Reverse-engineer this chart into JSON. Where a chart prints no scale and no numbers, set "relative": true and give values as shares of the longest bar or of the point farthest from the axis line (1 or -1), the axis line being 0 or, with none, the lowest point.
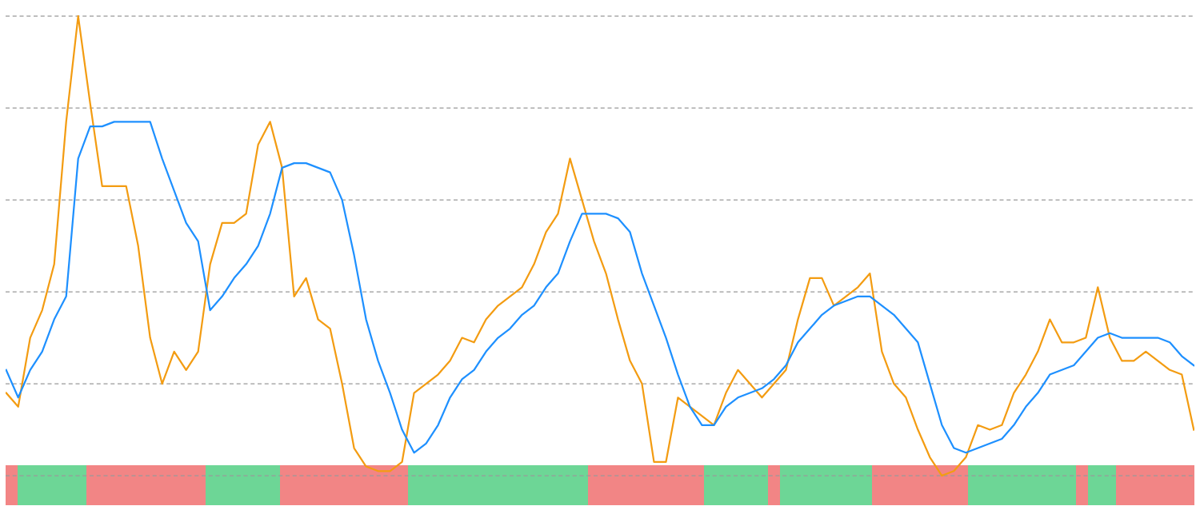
{
  "chart_data": {
    "type": "line",
    "relative": true,
    "grid": "y",
    "line_style": "solid",
    "marker": "none",
    "categories": [
      null,
      null,
      null,
      null,
      null,
      null,
      null,
      null,
      null,
      null,
      null,
      null,
      null,
      null,
      null,
      null,
      null,
      null,
      null,
      null,
      null,
      null,
      null,
      null,
      null,
      null,
      null,
      null,
      null,
      null,
      null,
      null,
      null,
      null,
      null,
      null,
      null,
      null,
      null,
      null,
      null,
      null,
      null,
      null,
      null,
      null,
      null,
      null,
      null,
      null,
      null,
      null,
      null,
      null,
      null,
      null,
      null,
      null,
      null,
      null,
      null,
      null,
      null,
      null,
      null,
      null,
      null,
      null,
      null,
      null,
      null,
      null,
      null,
      null,
      null,
      null,
      null,
      null,
      null,
      null,
      null,
      null,
      null,
      null,
      null,
      null,
      null,
      null,
      null,
      null,
      null,
      null,
      null,
      null,
      null,
      null,
      null,
      null,
      null,
      null
    ],
    "series": [
      {
        "color": "#f39c12",
        "values": [
          0.18,
          0.15,
          0.3,
          0.36,
          0.46,
          0.77,
          1.0,
          0.81,
          0.63,
          0.63,
          0.63,
          0.5,
          0.3,
          0.2,
          0.27,
          0.23,
          0.27,
          0.46,
          0.55,
          0.55,
          0.57,
          0.72,
          0.77,
          0.67,
          0.39,
          0.43,
          0.34,
          0.32,
          0.2,
          0.06,
          0.02,
          0.01,
          0.01,
          0.03,
          0.18,
          0.2,
          0.22,
          0.25,
          0.3,
          0.29,
          0.34,
          0.37,
          0.39,
          0.41,
          0.46,
          0.53,
          0.57,
          0.69,
          0.6,
          0.51,
          0.44,
          0.34,
          0.25,
          0.2,
          0.03,
          0.03,
          0.17,
          0.15,
          0.13,
          0.11,
          0.18,
          0.23,
          0.2,
          0.17,
          0.2,
          0.23,
          0.34,
          0.43,
          0.43,
          0.37,
          0.39,
          0.41,
          0.44,
          0.27,
          0.2,
          0.17,
          0.1,
          0.04,
          0,
          0.01,
          0.04,
          0.11,
          0.1,
          0.11,
          0.18,
          0.22,
          0.27,
          0.34,
          0.29,
          0.29,
          0.3,
          0.41,
          0.3,
          0.25,
          0.25,
          0.27,
          0.25,
          0.23,
          0.22,
          0.1
        ]
      },
      {
        "color": "#1e90ff",
        "values": [
          0.23,
          0.17,
          0.23,
          0.27,
          0.34,
          0.39,
          0.69,
          0.76,
          0.76,
          0.77,
          0.77,
          0.77,
          0.77,
          0.69,
          0.62,
          0.55,
          0.51,
          0.36,
          0.39,
          0.43,
          0.46,
          0.5,
          0.57,
          0.67,
          0.68,
          0.68,
          0.67,
          0.66,
          0.6,
          0.48,
          0.34,
          0.25,
          0.18,
          0.1,
          0.05,
          0.07,
          0.11,
          0.17,
          0.21,
          0.23,
          0.27,
          0.3,
          0.32,
          0.35,
          0.37,
          0.41,
          0.44,
          0.51,
          0.57,
          0.57,
          0.57,
          0.56,
          0.53,
          0.44,
          0.37,
          0.3,
          0.22,
          0.15,
          0.11,
          0.11,
          0.15,
          0.17,
          0.18,
          0.19,
          0.21,
          0.24,
          0.29,
          0.32,
          0.35,
          0.37,
          0.38,
          0.39,
          0.39,
          0.37,
          0.35,
          0.32,
          0.29,
          0.2,
          0.11,
          0.06,
          0.05,
          0.06,
          0.07,
          0.08,
          0.11,
          0.15,
          0.18,
          0.22,
          0.23,
          0.24,
          0.27,
          0.3,
          0.31,
          0.3,
          0.3,
          0.3,
          0.3,
          0.29,
          0.26,
          0.24
        ]
      }
    ]
  }
}
